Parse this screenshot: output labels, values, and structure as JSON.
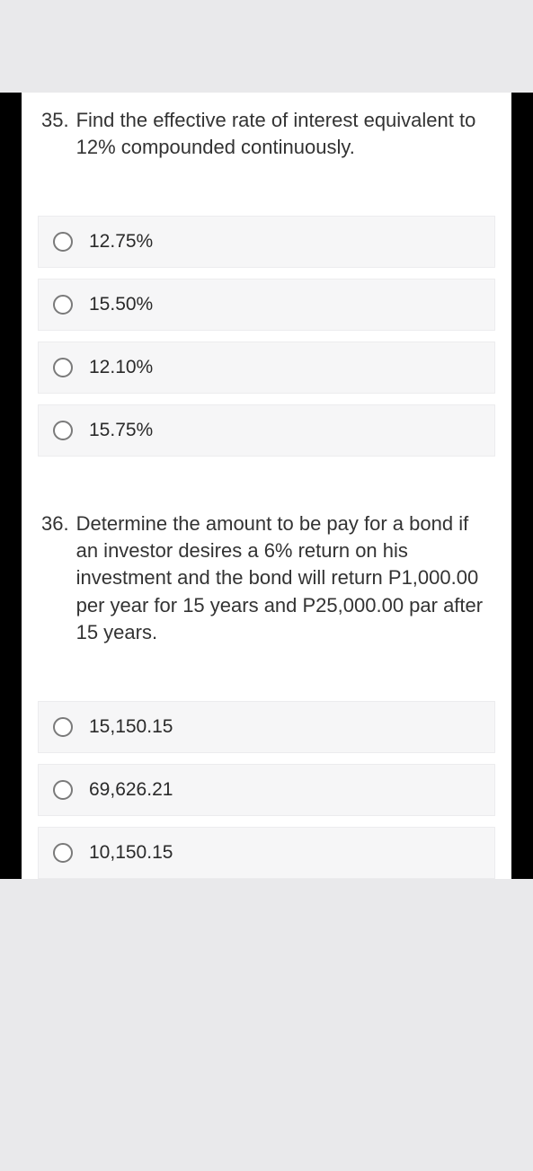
{
  "colors": {
    "page_bg": "#e9e9eb",
    "frame_bg": "#000000",
    "sheet_bg": "#ffffff",
    "option_bg": "#f6f6f7",
    "option_border": "#ececee",
    "radio_border": "#7a7a7a",
    "text_primary": "#333333",
    "text_option": "#2a2a2a"
  },
  "typography": {
    "question_fontsize_pt": 16,
    "option_fontsize_pt": 15,
    "font_family": "Arial"
  },
  "questions": [
    {
      "number": "35.",
      "text": "Find the effective rate of interest equivalent to 12% compounded continuously.",
      "options": [
        {
          "label": "12.75%"
        },
        {
          "label": "15.50%"
        },
        {
          "label": "12.10%"
        },
        {
          "label": "15.75%"
        }
      ]
    },
    {
      "number": "36.",
      "text": "Determine the amount to be pay for a bond if an investor desires a 6% return on his investment and the bond will return P1,000.00 per year for 15 years and P25,000.00 par after 15 years.",
      "options": [
        {
          "label": "15,150.15"
        },
        {
          "label": "69,626.21"
        },
        {
          "label": "10,150.15"
        }
      ]
    }
  ]
}
